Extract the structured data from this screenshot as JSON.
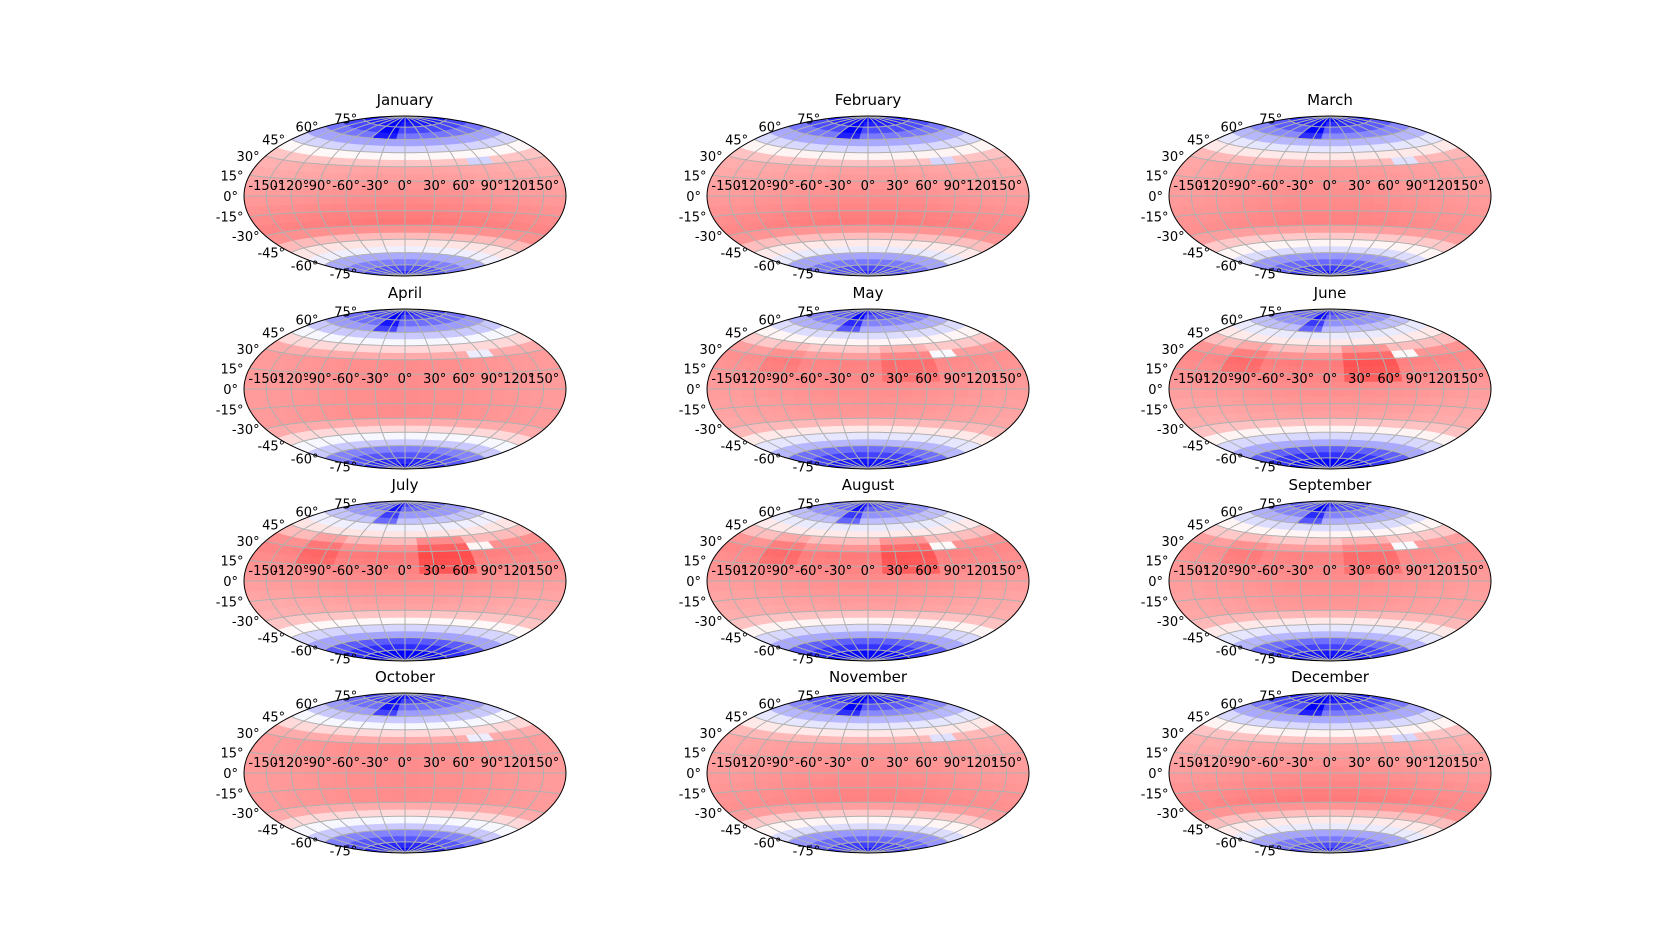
{
  "chart_data": {
    "type": "heatmap",
    "projection": "hammer",
    "layout": {
      "rows": 4,
      "cols": 3
    },
    "panels": [
      {
        "title": "January",
        "month": 1
      },
      {
        "title": "February",
        "month": 2
      },
      {
        "title": "March",
        "month": 3
      },
      {
        "title": "April",
        "month": 4
      },
      {
        "title": "May",
        "month": 5
      },
      {
        "title": "June",
        "month": 6
      },
      {
        "title": "July",
        "month": 7
      },
      {
        "title": "August",
        "month": 8
      },
      {
        "title": "September",
        "month": 9
      },
      {
        "title": "October",
        "month": 10
      },
      {
        "title": "November",
        "month": 11
      },
      {
        "title": "December",
        "month": 12
      }
    ],
    "longitude_ticks": [
      -150,
      -120,
      -90,
      -60,
      -30,
      0,
      30,
      60,
      90,
      120,
      150
    ],
    "longitude_tick_labels": [
      "-150°",
      "-120°",
      "-90°",
      "-60°",
      "-30°",
      "0°",
      "30°",
      "60°",
      "90°",
      "120°",
      "150°"
    ],
    "latitude_ticks": [
      75,
      60,
      45,
      30,
      15,
      0,
      -15,
      -30,
      -45,
      -60,
      -75
    ],
    "latitude_tick_labels": [
      "75°",
      "60°",
      "45°",
      "30°",
      "15°",
      "0°",
      "-15°",
      "-30°",
      "-45°",
      "-60°",
      "-75°"
    ],
    "xlim": [
      -180,
      180
    ],
    "ylim": [
      -90,
      90
    ],
    "grid": true,
    "colormap": {
      "low": "#0000ff",
      "mid": "#ffffff",
      "high": "#ff0000"
    },
    "title": "",
    "xlabel": "",
    "ylabel": ""
  },
  "colors": {
    "grid": "#b0b0b0",
    "outline": "#000000",
    "background": "#ffffff"
  }
}
